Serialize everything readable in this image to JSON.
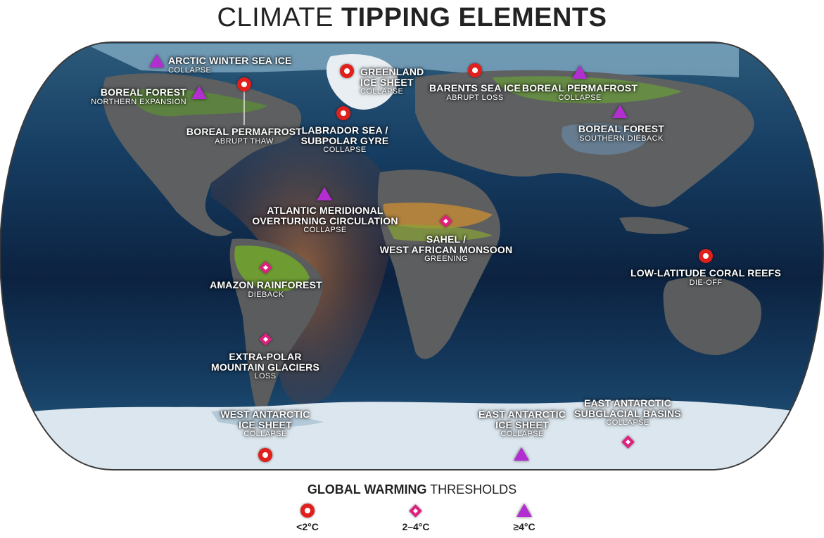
{
  "header": {
    "title_light": "CLIMATE ",
    "title_bold": "TIPPING ELEMENTS"
  },
  "colors": {
    "lt2": "#e0201c",
    "mid": "#e0207f",
    "ge4": "#b22ed0",
    "ocean": "#0f2a4a",
    "land": "#5a5a5a"
  },
  "icons": {
    "lt2": "red-circle-icon",
    "mid": "pink-diamond-icon",
    "ge4": "purple-triangle-icon"
  },
  "elements": [
    {
      "name": "ARCTIC WINTER SEA ICE",
      "status": "COLLAPSE",
      "threshold": "≥4°C"
    },
    {
      "name": "BOREAL FOREST",
      "status": "NORTHERN EXPANSION",
      "threshold": "≥4°C"
    },
    {
      "name": "BOREAL PERMAFROST",
      "status": "ABRUPT THAW",
      "threshold": "<2°C"
    },
    {
      "name": "GREENLAND\nICE SHEET",
      "status": "COLLAPSE",
      "threshold": "<2°C"
    },
    {
      "name": "LABRADOR SEA /\nSUBPOLAR GYRE",
      "status": "COLLAPSE",
      "threshold": "<2°C"
    },
    {
      "name": "BARENTS SEA ICE",
      "status": "ABRUPT LOSS",
      "threshold": "<2°C"
    },
    {
      "name": "BOREAL PERMAFROST",
      "status": "COLLAPSE",
      "threshold": "≥4°C"
    },
    {
      "name": "BOREAL FOREST",
      "status": "SOUTHERN DIEBACK",
      "threshold": "≥4°C"
    },
    {
      "name": "ATLANTIC MERIDIONAL\nOVERTURNING CIRCULATION",
      "status": "COLLAPSE",
      "threshold": "≥4°C"
    },
    {
      "name": "SAHEL /\nWEST AFRICAN MONSOON",
      "status": "GREENING",
      "threshold": "2–4°C"
    },
    {
      "name": "AMAZON RAINFOREST",
      "status": "DIEBACK",
      "threshold": "2–4°C"
    },
    {
      "name": "LOW-LATITUDE CORAL REEFS",
      "status": "DIE-OFF",
      "threshold": "<2°C"
    },
    {
      "name": "EXTRA-POLAR\nMOUNTAIN GLACIERS",
      "status": "LOSS",
      "threshold": "2–4°C"
    },
    {
      "name": "WEST ANTARCTIC\nICE SHEET",
      "status": "COLLAPSE",
      "threshold": "<2°C"
    },
    {
      "name": "EAST ANTARCTIC\nICE SHEET",
      "status": "COLLAPSE",
      "threshold": "≥4°C"
    },
    {
      "name": "EAST ANTARCTIC\nSUBGLACIAL BASINS",
      "status": "COLLAPSE",
      "threshold": "2–4°C"
    }
  ],
  "legend": {
    "title_bold": "GLOBAL WARMING",
    "title_light": " THRESHOLDS",
    "items": [
      {
        "label": "<2°C"
      },
      {
        "label": "2–4°C"
      },
      {
        "label": "≥4°C"
      }
    ]
  }
}
